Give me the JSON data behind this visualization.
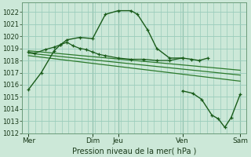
{
  "title": "Pression niveau de la mer( hPa )",
  "background_color": "#cce8d8",
  "plot_bg": "#cce8d8",
  "grid_color": "#99ccbb",
  "line_color_dark": "#1a5c1a",
  "line_color_mid": "#2d7a2d",
  "ylim": [
    1012,
    1022.8
  ],
  "yticks": [
    1012,
    1013,
    1014,
    1015,
    1016,
    1017,
    1018,
    1019,
    1020,
    1021,
    1022
  ],
  "xlim": [
    0,
    17.5
  ],
  "xtick_positions": [
    0.5,
    5.5,
    7.5,
    12.5,
    17.0
  ],
  "xtick_labels": [
    "Mer",
    "Dim",
    "Jeu",
    "Ven",
    "Sam"
  ],
  "vline_positions": [
    0.5,
    5.5,
    7.5,
    12.5,
    17.0
  ],
  "series_main_x": [
    0.5,
    1.5,
    2.5,
    3.0,
    3.5,
    4.5,
    5.5,
    6.5,
    7.5,
    8.5,
    9.0,
    9.8,
    10.5,
    11.5,
    12.5,
    13.2,
    13.8,
    14.5
  ],
  "series_main_y": [
    1015.6,
    1017.0,
    1018.8,
    1019.3,
    1019.7,
    1019.9,
    1019.8,
    1021.8,
    1022.1,
    1022.1,
    1021.8,
    1020.5,
    1019.0,
    1018.2,
    1018.2,
    1018.1,
    1018.0,
    1018.2
  ],
  "series2_x": [
    0.5,
    1.0,
    1.8,
    2.5,
    3.0,
    3.5,
    4.0,
    4.5,
    5.0,
    5.5,
    6.0,
    6.5,
    7.5,
    8.5,
    9.5,
    10.5,
    11.5,
    12.5
  ],
  "series2_y": [
    1018.7,
    1018.6,
    1018.9,
    1019.1,
    1019.3,
    1019.5,
    1019.2,
    1019.0,
    1018.9,
    1018.7,
    1018.5,
    1018.4,
    1018.2,
    1018.1,
    1018.1,
    1018.0,
    1018.0,
    1018.2
  ],
  "trend1_x": [
    0.5,
    17.0
  ],
  "trend1_y": [
    1018.8,
    1017.2
  ],
  "trend2_x": [
    0.5,
    17.0
  ],
  "trend2_y": [
    1018.6,
    1016.8
  ],
  "trend3_x": [
    0.5,
    17.0
  ],
  "trend3_y": [
    1018.4,
    1016.3
  ],
  "series3_x": [
    12.5,
    13.3,
    14.0,
    14.8,
    15.3,
    15.8,
    16.3,
    17.0
  ],
  "series3_y": [
    1015.5,
    1015.3,
    1014.8,
    1013.5,
    1013.2,
    1012.5,
    1013.3,
    1015.2
  ]
}
